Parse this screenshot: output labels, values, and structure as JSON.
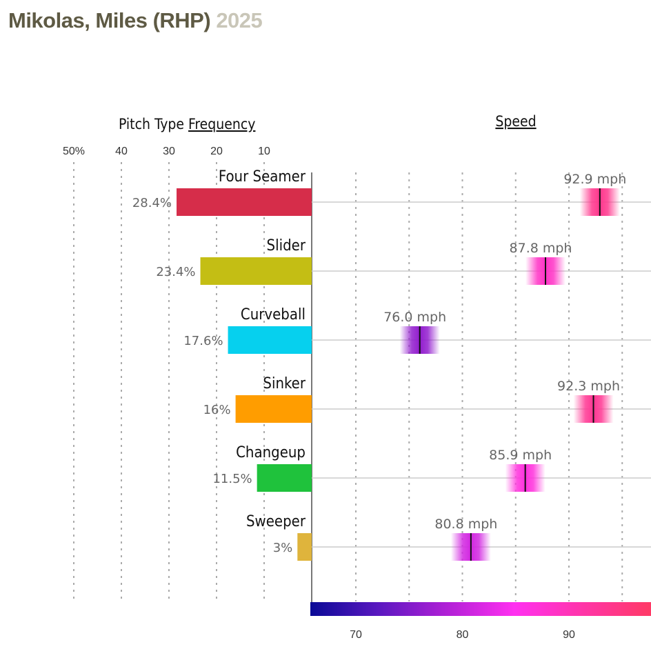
{
  "header": {
    "player": "Mikolas, Miles (RHP)",
    "year": "2025"
  },
  "chart_data": {
    "type": "bar",
    "frequency_panel": {
      "title_prefix": "Pitch Type ",
      "title_link": "Frequency",
      "ticks": [
        "50%",
        "40",
        "30",
        "20",
        "10"
      ],
      "tick_values": [
        50,
        40,
        30,
        20,
        10
      ],
      "xlim": [
        0,
        50
      ]
    },
    "speed_panel": {
      "title": "Speed",
      "ticks": [
        "70",
        "80",
        "90"
      ],
      "tick_values": [
        70,
        80,
        90
      ],
      "gridlines": [
        70,
        75,
        80,
        85,
        90,
        95
      ],
      "xlim": [
        65.9,
        96.5
      ],
      "unit": "mph"
    },
    "pitches": [
      {
        "name": "Four Seamer",
        "frequency": 28.4,
        "frequency_label": "28.4%",
        "color": "#d62d4a",
        "speed": 92.9,
        "speed_label": "92.9 mph"
      },
      {
        "name": "Slider",
        "frequency": 23.4,
        "frequency_label": "23.4%",
        "color": "#c4be14",
        "speed": 87.8,
        "speed_label": "87.8 mph"
      },
      {
        "name": "Curveball",
        "frequency": 17.6,
        "frequency_label": "17.6%",
        "color": "#06d0ee",
        "speed": 76.0,
        "speed_label": "76.0 mph"
      },
      {
        "name": "Sinker",
        "frequency": 16,
        "frequency_label": "16%",
        "color": "#ff9d00",
        "speed": 92.3,
        "speed_label": "92.3 mph"
      },
      {
        "name": "Changeup",
        "frequency": 11.5,
        "frequency_label": "11.5%",
        "color": "#1fc23c",
        "speed": 85.9,
        "speed_label": "85.9 mph"
      },
      {
        "name": "Sweeper",
        "frequency": 3,
        "frequency_label": "3%",
        "color": "#dfb43c",
        "speed": 80.8,
        "speed_label": "80.8 mph"
      }
    ],
    "colorscale": [
      "#0a0a96",
      "#5a18c0",
      "#b020d6",
      "#ff30f0",
      "#ff35a8",
      "#ff3a66"
    ]
  }
}
